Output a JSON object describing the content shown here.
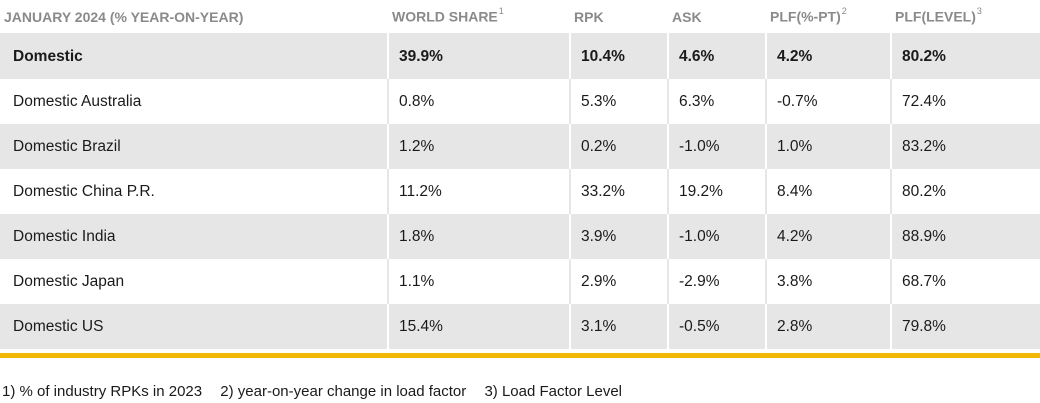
{
  "table": {
    "headers": [
      {
        "label": "JANUARY 2024 (% YEAR-ON-YEAR)",
        "sup": ""
      },
      {
        "label": "WORLD SHARE",
        "sup": "1"
      },
      {
        "label": "RPK",
        "sup": ""
      },
      {
        "label": "ASK",
        "sup": ""
      },
      {
        "label": "PLF(%-PT)",
        "sup": "2"
      },
      {
        "label": "PLF(LEVEL)",
        "sup": "3"
      }
    ],
    "rows": [
      {
        "cells": [
          "Domestic",
          "39.9%",
          "10.4%",
          "4.6%",
          "4.2%",
          "80.2%"
        ],
        "bold": true
      },
      {
        "cells": [
          "Domestic Australia",
          "0.8%",
          "5.3%",
          "6.3%",
          "-0.7%",
          "72.4%"
        ],
        "bold": false
      },
      {
        "cells": [
          "Domestic Brazil",
          "1.2%",
          "0.2%",
          "-1.0%",
          "1.0%",
          "83.2%"
        ],
        "bold": false
      },
      {
        "cells": [
          "Domestic China P.R.",
          "11.2%",
          "33.2%",
          "19.2%",
          "8.4%",
          "80.2%"
        ],
        "bold": false
      },
      {
        "cells": [
          "Domestic India",
          "1.8%",
          "3.9%",
          "-1.0%",
          "4.2%",
          "88.9%"
        ],
        "bold": false
      },
      {
        "cells": [
          "Domestic Japan",
          "1.1%",
          "2.9%",
          "-2.9%",
          "3.8%",
          "68.7%"
        ],
        "bold": false
      },
      {
        "cells": [
          "Domestic US",
          "15.4%",
          "3.1%",
          "-0.5%",
          "2.8%",
          "79.8%"
        ],
        "bold": false
      }
    ]
  },
  "footnotes": [
    "1) % of industry RPKs in 2023",
    "2) year-on-year change in load factor",
    "3) Load Factor Level"
  ],
  "colors": {
    "accent": "#f2b705",
    "row_shade": "#e6e6e6",
    "header_text": "#8a8a8a"
  }
}
